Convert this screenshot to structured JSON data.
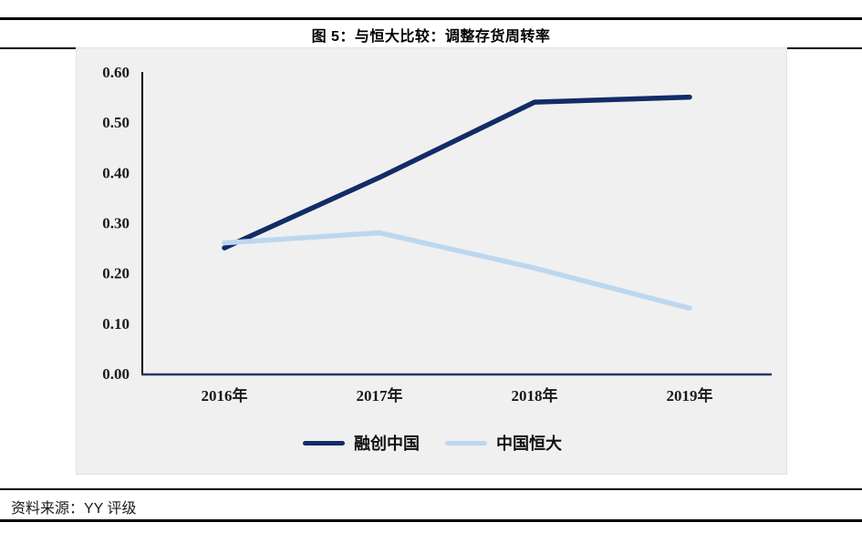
{
  "title": "图 5：与恒大比较：调整存货周转率",
  "source": "资料来源：YY 评级",
  "colors": {
    "series_dark": "#122c66",
    "series_light": "#bdd7ee",
    "baseline_axis": "#1f3864",
    "y_axis_line": "#000000",
    "panel_background": "#f0f0f1",
    "rule_black": "#000000"
  },
  "chart_data": {
    "type": "line",
    "categories": [
      "2016年",
      "2017年",
      "2018年",
      "2019年"
    ],
    "series": [
      {
        "name": "融创中国",
        "color": "#122c66",
        "values": [
          0.25,
          0.39,
          0.54,
          0.55
        ]
      },
      {
        "name": "中国恒大",
        "color": "#bdd7ee",
        "values": [
          0.26,
          0.28,
          0.21,
          0.13
        ]
      }
    ],
    "title": "图 5：与恒大比较：调整存货周转率",
    "xlabel": "",
    "ylabel": "",
    "ylim": [
      0.0,
      0.6
    ],
    "ytick_step": 0.1,
    "ytick_labels": [
      "0.00",
      "0.10",
      "0.20",
      "0.30",
      "0.40",
      "0.50",
      "0.60"
    ],
    "grid": false,
    "legend_position": "bottom"
  }
}
